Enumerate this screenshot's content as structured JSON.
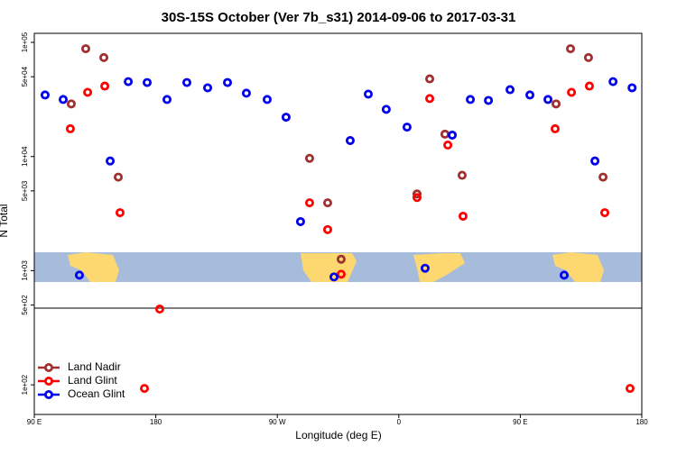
{
  "chart_data": {
    "type": "scatter",
    "title": "30S-15S October (Ver 7b_s31)   2014-09-06 to 2017-03-31",
    "xlabel": "Longitude (deg E)",
    "ylabel": "N Total",
    "xlim": [
      90,
      540
    ],
    "ylim": [
      55,
      120000
    ],
    "ylog": true,
    "legend": "lower left",
    "xticks": [
      {
        "value": 90,
        "label": "90 E"
      },
      {
        "value": 180,
        "label": "180"
      },
      {
        "value": 270,
        "label": "90 W"
      },
      {
        "value": 360,
        "label": "0"
      },
      {
        "value": 450,
        "label": "90 E"
      },
      {
        "value": 540,
        "label": "180"
      }
    ],
    "yticks": [
      {
        "value": 100,
        "label": "1e+02"
      },
      {
        "value": 500,
        "label": "5e+02"
      },
      {
        "value": 1000,
        "label": "1e+03"
      },
      {
        "value": 5000,
        "label": "5e+03"
      },
      {
        "value": 10000,
        "label": "1e+04"
      },
      {
        "value": 50000,
        "label": "5e+04"
      },
      {
        "value": 100000,
        "label": "1e+05"
      }
    ],
    "series": [
      {
        "name": "Land Nadir",
        "color": "#a03030",
        "x": [
          128.1,
          141.5,
          117.4,
          152.2,
          293.9,
          307.3,
          317.3,
          373.5,
          382.9,
          394.2,
          406.9,
          487.2,
          500.5,
          476.5,
          511.3
        ],
        "values": [
          88000,
          73600,
          28900,
          6600,
          9640,
          3930,
          1260,
          4700,
          47900,
          15700,
          6850,
          88000,
          73600,
          28900,
          6600
        ]
      },
      {
        "name": "Land Glint",
        "color": "#ff0000",
        "x": [
          129.5,
          142.2,
          116.7,
          153.5,
          182.9,
          171.6,
          293.9,
          307.3,
          317.3,
          373.5,
          382.9,
          396.3,
          407.6,
          487.9,
          501.2,
          475.8,
          512.6,
          531.3
        ],
        "values": [
          36500,
          41400,
          17500,
          3220,
          461,
          93,
          3930,
          2290,
          931,
          4370,
          32200,
          12600,
          3000,
          36500,
          41400,
          17500,
          3220,
          93
        ]
      },
      {
        "name": "Ocean Glint",
        "color": "#0000ee",
        "x": [
          98,
          111.4,
          123.4,
          146.2,
          159.6,
          173.6,
          188.3,
          203,
          218.4,
          233.1,
          247.1,
          262.5,
          276.5,
          287.2,
          312,
          324,
          337.4,
          350.7,
          366.1,
          379.5,
          399.6,
          413,
          426.4,
          442.4,
          457.1,
          470.5,
          482.5,
          505.3,
          518.7,
          532.8
        ],
        "values": [
          34600,
          31600,
          914,
          9140,
          45300,
          44500,
          31600,
          44500,
          40000,
          44500,
          35900,
          31600,
          22100,
          2690,
          881,
          13800,
          35200,
          25900,
          18100,
          1050,
          15400,
          31600,
          31000,
          38500,
          34600,
          31600,
          914,
          9140,
          45300,
          40000
        ]
      }
    ]
  }
}
